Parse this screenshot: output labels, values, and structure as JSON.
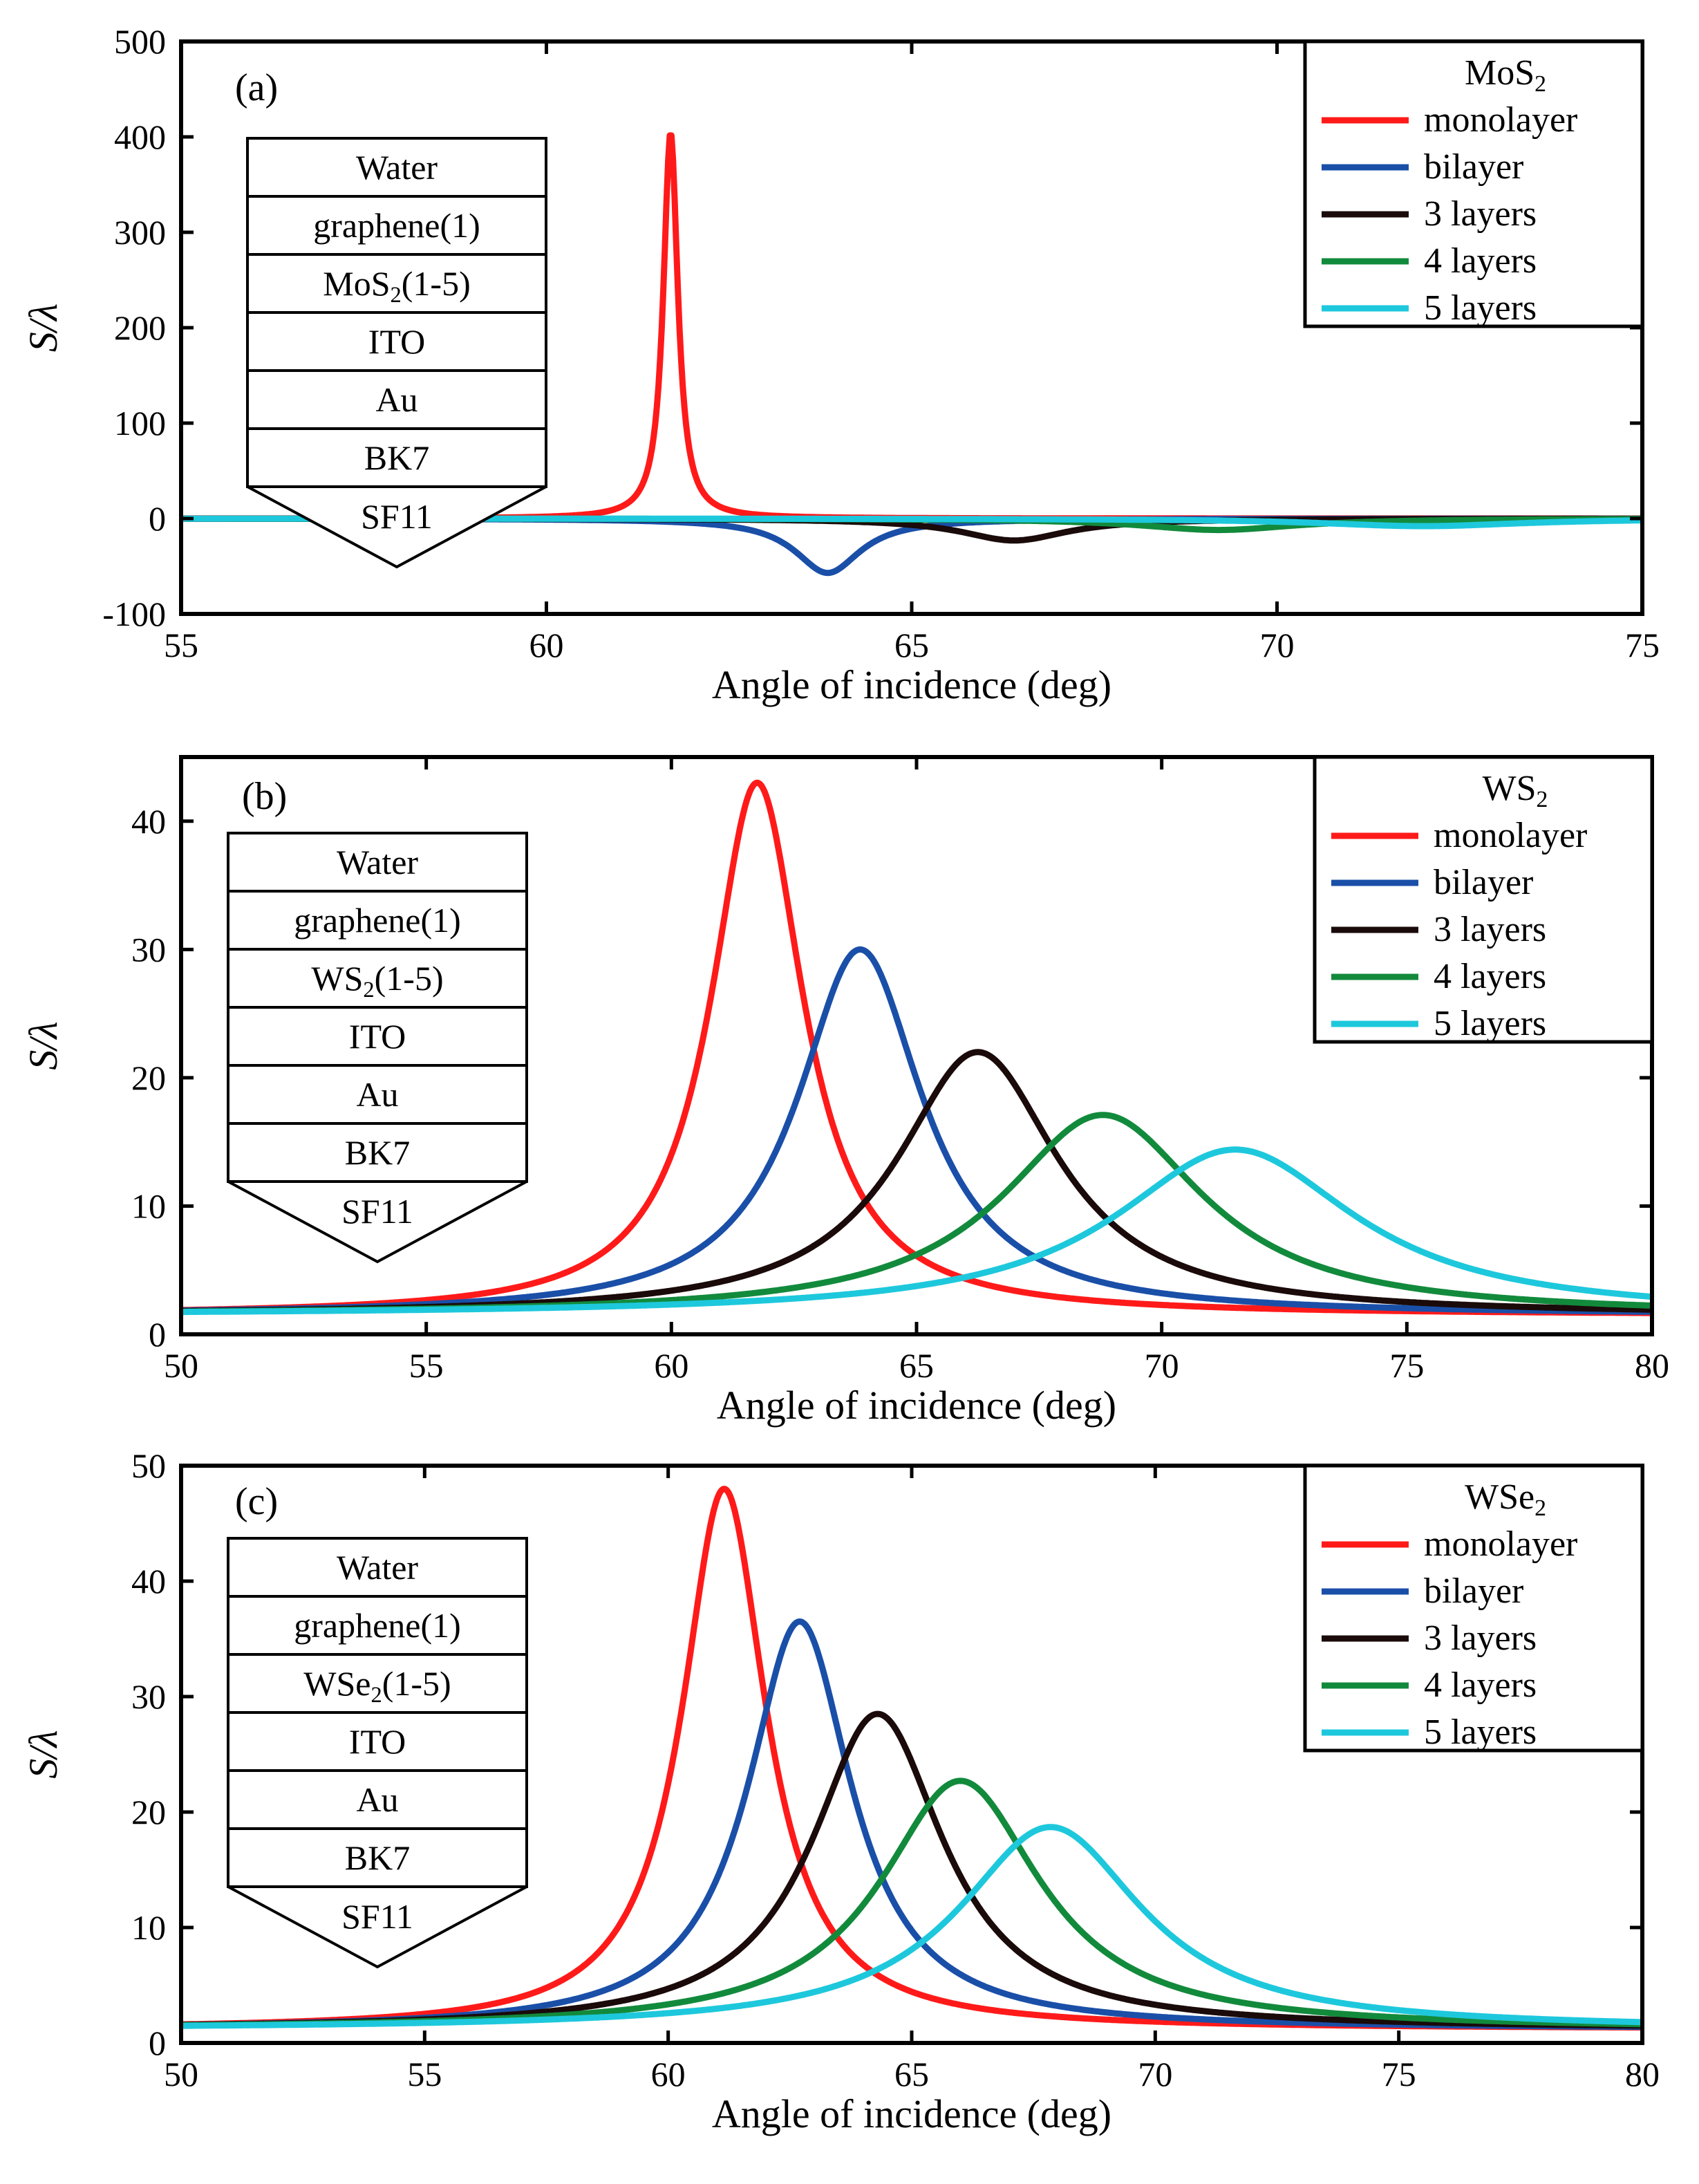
{
  "chart_data": [
    {
      "type": "line",
      "panel": "(a)",
      "xlabel": "Angle of incidence (deg)",
      "ylabel": "S/λ",
      "xlim": [
        55,
        75
      ],
      "ylim": [
        -100,
        500
      ],
      "xticks": [
        55,
        60,
        65,
        70,
        75
      ],
      "yticks": [
        -100,
        0,
        100,
        200,
        300,
        400,
        500
      ],
      "legend_title": "MoS2",
      "stack_layers": [
        "Water",
        "graphene(1)",
        "MoS2(1-5)",
        "ITO",
        "Au",
        "BK7",
        "SF11"
      ],
      "series": [
        {
          "name": "monolayer",
          "color": "#ff1a1a",
          "kind": "peak",
          "base": 0,
          "amp": 405,
          "center": 61.7,
          "width": 0.12
        },
        {
          "name": "bilayer",
          "color": "#1a4fa8",
          "kind": "dip",
          "base": 0,
          "amp": -57,
          "center": 63.85,
          "width": 0.55
        },
        {
          "name": "3 layers",
          "color": "#1a0a0a",
          "kind": "dip",
          "base": 0,
          "amp": -23,
          "center": 66.4,
          "width": 0.9
        },
        {
          "name": "4 layers",
          "color": "#128a3c",
          "kind": "dip",
          "base": 0,
          "amp": -12,
          "center": 69.2,
          "width": 1.3
        },
        {
          "name": "5 layers",
          "color": "#1ec8dc",
          "kind": "dip",
          "base": 0,
          "amp": -8,
          "center": 72.0,
          "width": 1.7
        }
      ]
    },
    {
      "type": "line",
      "panel": "(b)",
      "xlabel": "Angle of incidence (deg)",
      "ylabel": "S/λ",
      "xlim": [
        50,
        80
      ],
      "ylim": [
        0,
        45
      ],
      "xticks": [
        50,
        55,
        60,
        65,
        70,
        75,
        80
      ],
      "yticks": [
        0,
        10,
        20,
        30,
        40
      ],
      "legend_title": "WS2",
      "stack_layers": [
        "Water",
        "graphene(1)",
        "WS2(1-5)",
        "ITO",
        "Au",
        "BK7",
        "SF11"
      ],
      "series": [
        {
          "name": "monolayer",
          "color": "#ff1a1a",
          "kind": "peak",
          "base": 1.5,
          "amp": 41.5,
          "center": 61.75,
          "width": 1.15
        },
        {
          "name": "bilayer",
          "color": "#1a4fa8",
          "kind": "peak",
          "base": 1.5,
          "amp": 28.5,
          "center": 63.85,
          "width": 1.55
        },
        {
          "name": "3 layers",
          "color": "#1a0a0a",
          "kind": "peak",
          "base": 1.5,
          "amp": 20.5,
          "center": 66.25,
          "width": 2.0
        },
        {
          "name": "4 layers",
          "color": "#128a3c",
          "kind": "peak",
          "base": 1.5,
          "amp": 15.6,
          "center": 68.8,
          "width": 2.5
        },
        {
          "name": "5 layers",
          "color": "#1ec8dc",
          "kind": "peak",
          "base": 1.5,
          "amp": 12.9,
          "center": 71.5,
          "width": 3.0
        }
      ]
    },
    {
      "type": "line",
      "panel": "(c)",
      "xlabel": "Angle of incidence (deg)",
      "ylabel": "S/λ",
      "xlim": [
        50,
        80
      ],
      "ylim": [
        0,
        50
      ],
      "xticks": [
        50,
        55,
        60,
        65,
        70,
        75,
        80
      ],
      "yticks": [
        0,
        10,
        20,
        30,
        40,
        50
      ],
      "legend_title": "WSe2",
      "stack_layers": [
        "Water",
        "graphene(1)",
        "WSe2(1-5)",
        "ITO",
        "Au",
        "BK7",
        "SF11"
      ],
      "series": [
        {
          "name": "monolayer",
          "color": "#ff1a1a",
          "kind": "peak",
          "base": 1.2,
          "amp": 46.8,
          "center": 61.15,
          "width": 1.05
        },
        {
          "name": "bilayer",
          "color": "#1a4fa8",
          "kind": "peak",
          "base": 1.2,
          "amp": 35.3,
          "center": 62.7,
          "width": 1.3
        },
        {
          "name": "3 layers",
          "color": "#1a0a0a",
          "kind": "peak",
          "base": 1.2,
          "amp": 27.3,
          "center": 64.3,
          "width": 1.65
        },
        {
          "name": "4 layers",
          "color": "#128a3c",
          "kind": "peak",
          "base": 1.2,
          "amp": 21.5,
          "center": 66.0,
          "width": 2.0
        },
        {
          "name": "5 layers",
          "color": "#1ec8dc",
          "kind": "peak",
          "base": 1.2,
          "amp": 17.5,
          "center": 67.85,
          "width": 2.3
        }
      ]
    }
  ]
}
